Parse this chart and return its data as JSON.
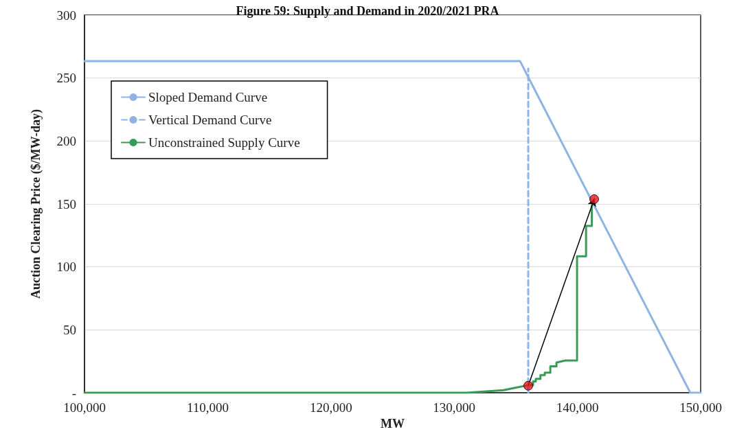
{
  "chart_data": {
    "type": "line",
    "title": "Figure 59: Supply and Demand in 2020/2021 PRA",
    "xlabel": "MW",
    "ylabel": "Auction Clearing Price ($/MW-day)",
    "series": [
      {
        "name": "Sloped Demand Curve",
        "color": "#8fb4e3",
        "x": [
          100000,
          135340,
          149160,
          150000
        ],
        "values": [
          263.5,
          263.5,
          0,
          0
        ]
      },
      {
        "name": "Vertical Demand Curve",
        "color": "#8fb4e3",
        "line_style": "dashed",
        "x": [
          136010,
          136010
        ],
        "values": [
          0,
          257.5
        ]
      },
      {
        "name": "Unconstrained Supply Curve",
        "color": "#3a9a5a",
        "x": [
          100000,
          131000,
          134000,
          134950,
          136060,
          136400,
          136400,
          136620,
          136620,
          137000,
          137000,
          137350,
          137350,
          137800,
          137800,
          138300,
          138300,
          139020,
          139970,
          139970,
          140700,
          140700,
          141170,
          141170,
          141360
        ],
        "values": [
          0,
          0,
          2,
          4,
          6,
          6,
          9,
          9,
          11,
          11,
          14,
          14,
          16,
          16,
          21,
          21,
          24,
          25.6,
          25.6,
          108.4,
          108.4,
          132.6,
          132.6,
          148.4,
          153.8
        ]
      },
      {
        "type": "scatter",
        "color": "#e8141a",
        "marker": "circle",
        "x": [
          136010,
          141360
        ],
        "values": [
          5.6,
          153.8
        ]
      }
    ],
    "xlim": [
      100000,
      150000
    ],
    "xticks": [
      {
        "value": 100000,
        "label": "100,000"
      },
      {
        "value": 110000,
        "label": "110,000"
      },
      {
        "value": 120000,
        "label": "120,000"
      },
      {
        "value": 130000,
        "label": "130,000"
      },
      {
        "value": 140000,
        "label": "140,000"
      },
      {
        "value": 150000,
        "label": "150,000"
      }
    ],
    "ylim": [
      0,
      300
    ],
    "yticks": [
      {
        "value": 0,
        "label": "-"
      },
      50,
      100,
      150,
      200,
      250,
      300
    ],
    "grid": "y",
    "legend": "top left",
    "marker": "none",
    "line_style": "solid"
  }
}
